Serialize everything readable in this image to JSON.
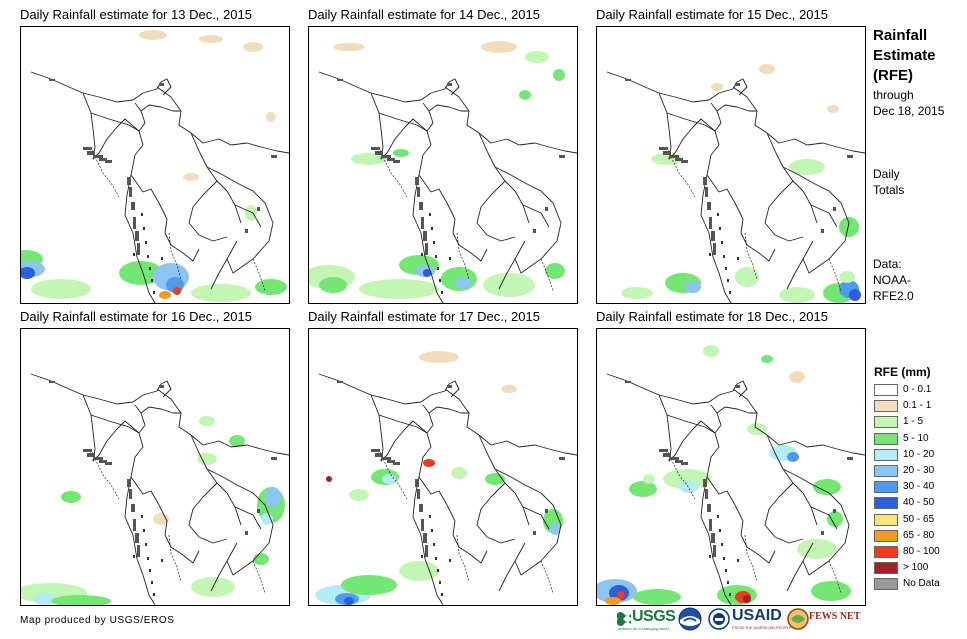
{
  "panels": [
    {
      "title": "Daily Rainfall estimate for 13 Dec., 2015"
    },
    {
      "title": "Daily Rainfall estimate for 14 Dec., 2015"
    },
    {
      "title": "Daily Rainfall estimate for 15 Dec., 2015"
    },
    {
      "title": "Daily Rainfall estimate for 16 Dec., 2015"
    },
    {
      "title": "Daily Rainfall estimate for 17 Dec., 2015"
    },
    {
      "title": "Daily Rainfall estimate for 18 Dec., 2015"
    }
  ],
  "sidebar": {
    "title_lines": [
      "Rainfall",
      "Estimate",
      "(RFE)"
    ],
    "through": "through",
    "through_date": "Dec 18, 2015",
    "period_lines": [
      "Daily",
      "Totals"
    ],
    "data_lines": [
      "Data:",
      "NOAA-",
      "RFE2.0"
    ]
  },
  "legend": {
    "title": "RFE (mm)",
    "items": [
      {
        "label": "0 - 0.1",
        "color": "#ffffff"
      },
      {
        "label": "0.1 - 1",
        "color": "#f2dcbe"
      },
      {
        "label": "1 - 5",
        "color": "#c3f5b3"
      },
      {
        "label": "5 - 10",
        "color": "#73e673"
      },
      {
        "label": "10 - 20",
        "color": "#b4ecf5"
      },
      {
        "label": "20 - 30",
        "color": "#8cc4f2"
      },
      {
        "label": "30 - 40",
        "color": "#4f9bf0"
      },
      {
        "label": "40 - 50",
        "color": "#2a5fe0"
      },
      {
        "label": "50 - 65",
        "color": "#f7e37a"
      },
      {
        "label": "65 - 80",
        "color": "#f29b1d"
      },
      {
        "label": "80 - 100",
        "color": "#ee3a1e"
      },
      {
        "label": "> 100",
        "color": "#a61f24"
      },
      {
        "label": "No Data",
        "color": "#999999"
      }
    ]
  },
  "credit": "Map produced by USGS/EROS",
  "logos": {
    "usgs": "USGS",
    "usgs_tag": "science for a changing world",
    "usaid": "USAID",
    "usaid_tag": "FROM THE AMERICAN PEOPLE",
    "fewsnet": "FEWS NET"
  },
  "colors": {
    "border": "#000000",
    "dry_land": "#ffffff",
    "country_line": "#222222",
    "no_data": "#555555"
  }
}
